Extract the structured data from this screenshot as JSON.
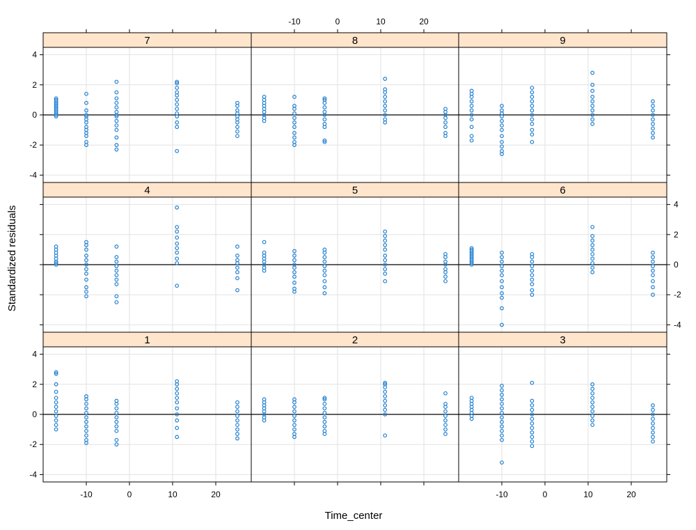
{
  "chart_data": {
    "type": "scatter",
    "layout": "3x3 trellis",
    "xlabel": "Time_center",
    "ylabel": "Standardized residuals",
    "xlim": [
      -22,
      28
    ],
    "ylim": [
      -4.5,
      4.5
    ],
    "x_ticks": [
      -10,
      0,
      10,
      20
    ],
    "y_ticks": [
      -4,
      -2,
      0,
      2,
      4
    ],
    "grid": true,
    "reference_line_y": 0,
    "colors": {
      "points": "#1f7fd0",
      "strip_background": "#ffe5cc",
      "frame": "#000000",
      "grid": "#e2e2e2"
    },
    "panels": [
      {
        "label": "7",
        "series": [
          {
            "x": -17,
            "y": [
              -0.1,
              0.0,
              0.1,
              0.2,
              0.3,
              0.4,
              0.5,
              0.6,
              0.7,
              0.8,
              0.9,
              1.0,
              1.1
            ]
          },
          {
            "x": -10,
            "y": [
              -2.0,
              -1.8,
              -1.4,
              -1.2,
              -1.0,
              -0.8,
              -0.5,
              -0.3,
              -0.1,
              0.0,
              0.3,
              0.8,
              1.4
            ]
          },
          {
            "x": -3,
            "y": [
              -2.3,
              -2.0,
              -1.5,
              -1.0,
              -0.7,
              -0.4,
              -0.1,
              0.0,
              0.2,
              0.5,
              0.8,
              1.1,
              1.5,
              2.2
            ]
          },
          {
            "x": 11,
            "y": [
              -2.4,
              -0.8,
              -0.5,
              -0.1,
              0.1,
              0.4,
              0.7,
              1.0,
              1.3,
              1.5,
              1.8,
              2.1,
              2.2
            ]
          },
          {
            "x": 25,
            "y": [
              -1.4,
              -1.1,
              -0.8,
              -0.5,
              -0.3,
              -0.1,
              0.1,
              0.3,
              0.6,
              0.8
            ]
          }
        ]
      },
      {
        "label": "8",
        "series": [
          {
            "x": -17,
            "y": [
              -0.4,
              -0.2,
              0.0,
              0.2,
              0.4,
              0.6,
              0.8,
              1.0,
              1.2
            ]
          },
          {
            "x": -10,
            "y": [
              -2.0,
              -1.8,
              -1.5,
              -1.2,
              -0.8,
              -0.5,
              -0.2,
              0.1,
              0.4,
              0.6,
              1.2
            ]
          },
          {
            "x": -3,
            "y": [
              -1.8,
              -1.7,
              -0.8,
              -0.6,
              -0.3,
              0.0,
              0.2,
              0.5,
              0.8,
              1.0,
              1.1
            ]
          },
          {
            "x": 11,
            "y": [
              -0.5,
              -0.3,
              0.0,
              0.3,
              0.6,
              0.9,
              1.2,
              1.5,
              1.7,
              2.4
            ]
          },
          {
            "x": 25,
            "y": [
              -1.4,
              -1.2,
              -0.8,
              -0.5,
              -0.2,
              0.0,
              0.2,
              0.4
            ]
          }
        ]
      },
      {
        "label": "9",
        "series": [
          {
            "x": -17,
            "y": [
              -1.7,
              -1.4,
              -0.8,
              -0.3,
              0.0,
              0.3,
              0.6,
              0.9,
              1.2,
              1.4,
              1.6
            ]
          },
          {
            "x": -10,
            "y": [
              -2.6,
              -2.4,
              -2.1,
              -1.8,
              -1.4,
              -1.0,
              -0.7,
              -0.4,
              -0.1,
              0.1,
              0.3,
              0.6
            ]
          },
          {
            "x": -3,
            "y": [
              -1.8,
              -1.3,
              -1.0,
              -0.6,
              -0.3,
              0.0,
              0.3,
              0.6,
              0.9,
              1.2,
              1.5,
              1.8
            ]
          },
          {
            "x": 11,
            "y": [
              -0.6,
              -0.3,
              0.0,
              0.3,
              0.6,
              0.9,
              1.2,
              1.6,
              2.0,
              2.8
            ]
          },
          {
            "x": 25,
            "y": [
              -1.5,
              -1.2,
              -0.9,
              -0.6,
              -0.3,
              0.0,
              0.3,
              0.6,
              0.9
            ]
          }
        ]
      },
      {
        "label": "4",
        "series": [
          {
            "x": -17,
            "y": [
              0.0,
              0.1,
              0.2,
              0.4,
              0.6,
              0.8,
              1.0,
              1.2
            ]
          },
          {
            "x": -10,
            "y": [
              -2.1,
              -1.8,
              -1.5,
              -1.0,
              -0.6,
              -0.3,
              0.0,
              0.3,
              0.6,
              1.0,
              1.3,
              1.5
            ]
          },
          {
            "x": -3,
            "y": [
              -2.5,
              -2.1,
              -1.3,
              -1.0,
              -0.7,
              -0.4,
              -0.1,
              0.2,
              0.5,
              1.2
            ]
          },
          {
            "x": 11,
            "y": [
              -1.4,
              0.1,
              0.4,
              0.8,
              1.1,
              1.4,
              1.8,
              2.2,
              2.5,
              3.8
            ]
          },
          {
            "x": 25,
            "y": [
              -1.7,
              -0.9,
              -0.5,
              -0.2,
              0.1,
              0.3,
              0.6,
              1.2
            ]
          }
        ]
      },
      {
        "label": "5",
        "series": [
          {
            "x": -17,
            "y": [
              -0.4,
              -0.2,
              0.0,
              0.2,
              0.4,
              0.6,
              0.8,
              1.5
            ]
          },
          {
            "x": -10,
            "y": [
              -1.8,
              -1.6,
              -1.2,
              -0.8,
              -0.5,
              -0.2,
              0.0,
              0.3,
              0.6,
              0.9
            ]
          },
          {
            "x": -3,
            "y": [
              -1.9,
              -1.5,
              -1.1,
              -0.7,
              -0.4,
              -0.1,
              0.2,
              0.5,
              0.8,
              1.0
            ]
          },
          {
            "x": 11,
            "y": [
              -1.1,
              -0.6,
              -0.3,
              0.0,
              0.3,
              0.6,
              1.0,
              1.3,
              1.6,
              1.9,
              2.2
            ]
          },
          {
            "x": 25,
            "y": [
              -1.1,
              -0.8,
              -0.5,
              -0.3,
              0.0,
              0.2,
              0.5,
              0.7
            ]
          }
        ]
      },
      {
        "label": "6",
        "series": [
          {
            "x": -17,
            "y": [
              0.0,
              0.1,
              0.2,
              0.3,
              0.4,
              0.5,
              0.6,
              0.7,
              0.8,
              0.9,
              1.0,
              1.1
            ]
          },
          {
            "x": -10,
            "y": [
              -4.0,
              -2.9,
              -2.2,
              -1.9,
              -1.5,
              -1.1,
              -0.7,
              -0.4,
              -0.1,
              0.2,
              0.5,
              0.8
            ]
          },
          {
            "x": -3,
            "y": [
              -2.0,
              -1.7,
              -1.3,
              -1.0,
              -0.7,
              -0.4,
              -0.1,
              0.2,
              0.5,
              0.7
            ]
          },
          {
            "x": 11,
            "y": [
              -0.5,
              -0.2,
              0.1,
              0.4,
              0.7,
              1.0,
              1.3,
              1.6,
              1.9,
              2.5
            ]
          },
          {
            "x": 25,
            "y": [
              -2.0,
              -1.5,
              -1.1,
              -0.7,
              -0.4,
              -0.1,
              0.2,
              0.5,
              0.8
            ]
          }
        ]
      },
      {
        "label": "1",
        "series": [
          {
            "x": -17,
            "y": [
              -1.0,
              -0.7,
              -0.4,
              -0.1,
              0.2,
              0.5,
              0.8,
              1.1,
              1.5,
              2.0,
              2.7,
              2.8
            ]
          },
          {
            "x": -10,
            "y": [
              -1.9,
              -1.7,
              -1.4,
              -1.1,
              -0.8,
              -0.5,
              -0.2,
              0.1,
              0.4,
              0.7,
              1.0,
              1.2
            ]
          },
          {
            "x": -3,
            "y": [
              -2.0,
              -1.7,
              -1.1,
              -0.8,
              -0.5,
              -0.2,
              0.1,
              0.4,
              0.7,
              0.9
            ]
          },
          {
            "x": 11,
            "y": [
              -1.5,
              -0.9,
              -0.4,
              0.0,
              0.4,
              0.8,
              1.1,
              1.4,
              1.7,
              2.0,
              2.2
            ]
          },
          {
            "x": 25,
            "y": [
              -1.6,
              -1.3,
              -1.0,
              -0.7,
              -0.4,
              -0.1,
              0.2,
              0.5,
              0.8
            ]
          }
        ]
      },
      {
        "label": "2",
        "series": [
          {
            "x": -17,
            "y": [
              -0.4,
              -0.2,
              0.0,
              0.2,
              0.4,
              0.6,
              0.8,
              1.0
            ]
          },
          {
            "x": -10,
            "y": [
              -1.5,
              -1.3,
              -1.0,
              -0.7,
              -0.4,
              -0.1,
              0.2,
              0.5,
              0.8,
              1.0
            ]
          },
          {
            "x": -3,
            "y": [
              -1.3,
              -1.1,
              -0.8,
              -0.5,
              -0.2,
              0.1,
              0.4,
              0.7,
              1.0,
              1.1
            ]
          },
          {
            "x": 11,
            "y": [
              -1.4,
              0.0,
              0.3,
              0.6,
              0.9,
              1.2,
              1.5,
              1.8,
              2.0,
              2.1
            ]
          },
          {
            "x": 25,
            "y": [
              -1.3,
              -1.0,
              -0.7,
              -0.4,
              -0.1,
              0.2,
              0.5,
              0.7,
              1.4
            ]
          }
        ]
      },
      {
        "label": "3",
        "series": [
          {
            "x": -17,
            "y": [
              -0.3,
              -0.1,
              0.1,
              0.3,
              0.5,
              0.7,
              0.9,
              1.1
            ]
          },
          {
            "x": -10,
            "y": [
              -3.2,
              -1.7,
              -1.4,
              -1.1,
              -0.8,
              -0.5,
              -0.2,
              0.1,
              0.4,
              0.7,
              1.0,
              1.3,
              1.6,
              1.9
            ]
          },
          {
            "x": -3,
            "y": [
              -2.1,
              -1.8,
              -1.5,
              -1.2,
              -0.9,
              -0.6,
              -0.3,
              0.0,
              0.3,
              0.6,
              0.9,
              2.1
            ]
          },
          {
            "x": 11,
            "y": [
              -0.7,
              -0.4,
              -0.1,
              0.2,
              0.5,
              0.8,
              1.1,
              1.4,
              1.7,
              2.0
            ]
          },
          {
            "x": 25,
            "y": [
              -1.8,
              -1.5,
              -1.2,
              -0.9,
              -0.6,
              -0.3,
              0.0,
              0.3,
              0.6
            ]
          }
        ]
      }
    ]
  }
}
